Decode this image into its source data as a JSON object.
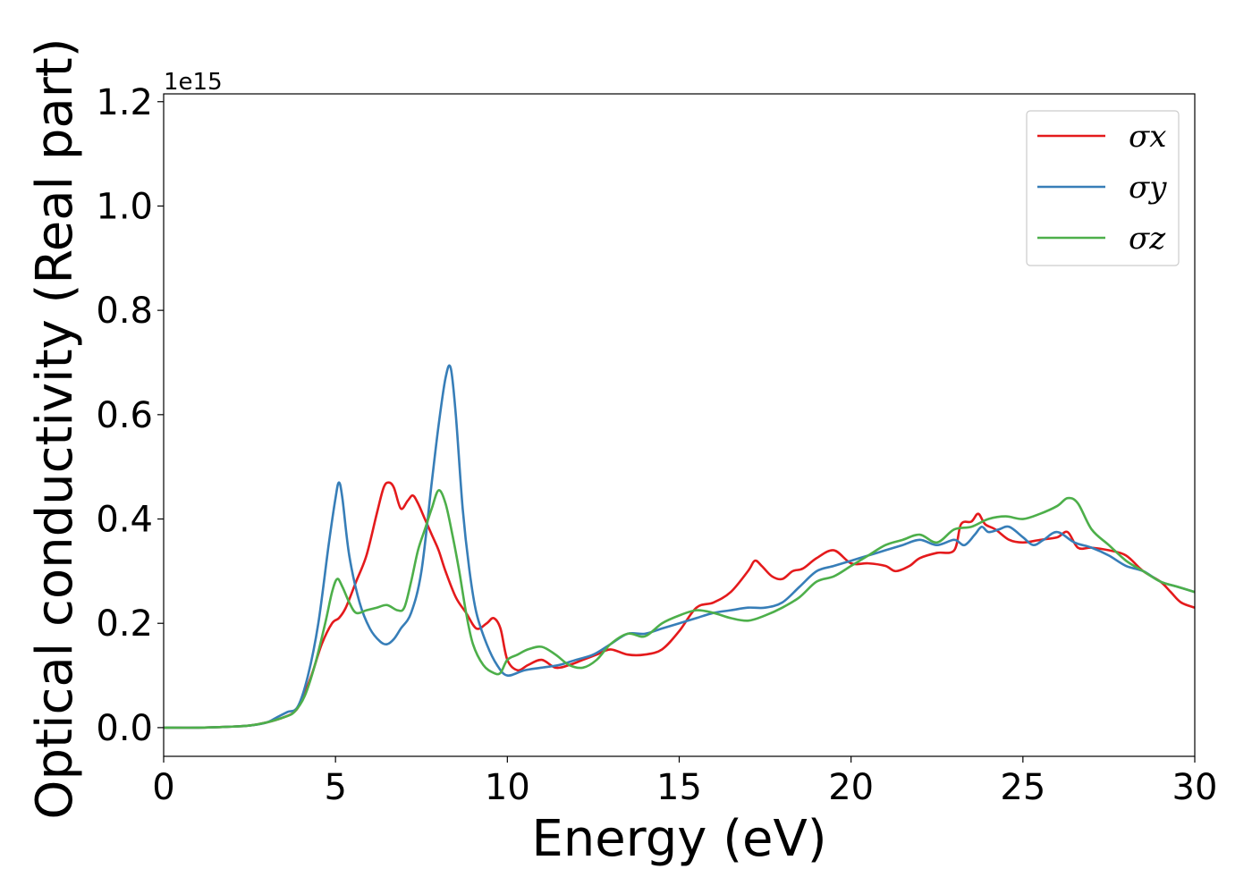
{
  "chart_data": {
    "type": "line",
    "xlabel": "Energy (eV)",
    "ylabel": "Optical conductivity (Real part)",
    "offset_text": "1e15",
    "xlim": [
      0,
      30
    ],
    "ylim": [
      -0.055,
      1.215
    ],
    "xticks": [
      0,
      5,
      10,
      15,
      20,
      25,
      30
    ],
    "xtick_labels": [
      "0",
      "5",
      "10",
      "15",
      "20",
      "25",
      "30"
    ],
    "yticks": [
      0.0,
      0.2,
      0.4,
      0.6,
      0.8,
      1.0,
      1.2
    ],
    "ytick_labels": [
      "0.0",
      "0.2",
      "0.4",
      "0.6",
      "0.8",
      "1.0",
      "1.2"
    ],
    "grid": false,
    "legend_position": "top-right",
    "series": [
      {
        "name": "σx",
        "color": "#e41a1c",
        "x": [
          0,
          1,
          2,
          2.5,
          3,
          3.5,
          3.8,
          4.0,
          4.3,
          4.6,
          4.9,
          5.1,
          5.3,
          5.6,
          5.9,
          6.2,
          6.4,
          6.55,
          6.7,
          6.9,
          7.1,
          7.25,
          7.4,
          7.6,
          7.8,
          8.0,
          8.2,
          8.5,
          8.8,
          9.1,
          9.4,
          9.6,
          9.8,
          10.0,
          10.3,
          10.6,
          11.0,
          11.4,
          11.8,
          12.2,
          12.6,
          13.0,
          13.5,
          14.0,
          14.5,
          15.0,
          15.5,
          16.0,
          16.5,
          17.0,
          17.2,
          17.4,
          17.7,
          18.0,
          18.3,
          18.6,
          19.0,
          19.5,
          20.0,
          20.5,
          21.0,
          21.3,
          21.7,
          22.0,
          22.5,
          23.0,
          23.2,
          23.5,
          23.7,
          23.9,
          24.2,
          24.6,
          25.0,
          25.5,
          26.0,
          26.3,
          26.6,
          27.0,
          27.5,
          28.0,
          28.5,
          29.0,
          29.3,
          29.6,
          30.0
        ],
        "y": [
          0.0,
          0.0,
          0.002,
          0.004,
          0.01,
          0.02,
          0.03,
          0.05,
          0.1,
          0.16,
          0.2,
          0.21,
          0.23,
          0.28,
          0.33,
          0.41,
          0.46,
          0.47,
          0.46,
          0.42,
          0.435,
          0.445,
          0.43,
          0.4,
          0.37,
          0.34,
          0.3,
          0.25,
          0.22,
          0.19,
          0.2,
          0.21,
          0.19,
          0.13,
          0.11,
          0.12,
          0.13,
          0.115,
          0.12,
          0.13,
          0.14,
          0.15,
          0.14,
          0.14,
          0.15,
          0.185,
          0.23,
          0.24,
          0.26,
          0.3,
          0.32,
          0.31,
          0.29,
          0.285,
          0.3,
          0.305,
          0.325,
          0.34,
          0.315,
          0.315,
          0.31,
          0.3,
          0.31,
          0.325,
          0.335,
          0.34,
          0.39,
          0.395,
          0.41,
          0.39,
          0.38,
          0.36,
          0.355,
          0.36,
          0.365,
          0.375,
          0.345,
          0.345,
          0.34,
          0.33,
          0.3,
          0.28,
          0.26,
          0.24,
          0.23
        ]
      },
      {
        "name": "σy",
        "color": "#377eb8",
        "x": [
          0,
          1,
          2,
          2.5,
          3,
          3.3,
          3.6,
          3.9,
          4.2,
          4.5,
          4.8,
          5.0,
          5.1,
          5.2,
          5.4,
          5.7,
          6.0,
          6.3,
          6.5,
          6.7,
          6.9,
          7.2,
          7.5,
          7.8,
          8.0,
          8.2,
          8.35,
          8.5,
          8.7,
          8.9,
          9.1,
          9.4,
          9.7,
          10.0,
          10.5,
          11.0,
          11.5,
          12.0,
          12.5,
          13.0,
          13.5,
          14.0,
          14.5,
          15.0,
          15.5,
          16.0,
          16.5,
          17.0,
          17.5,
          18.0,
          18.5,
          19.0,
          19.5,
          20.0,
          20.5,
          21.0,
          21.5,
          22.0,
          22.5,
          23.0,
          23.3,
          23.6,
          23.8,
          24.0,
          24.3,
          24.6,
          25.0,
          25.3,
          25.6,
          26.0,
          26.5,
          27.0,
          27.5,
          28.0,
          28.5,
          29.0,
          29.5,
          30.0
        ],
        "y": [
          0.0,
          0.0,
          0.002,
          0.004,
          0.01,
          0.02,
          0.03,
          0.04,
          0.1,
          0.2,
          0.35,
          0.44,
          0.47,
          0.44,
          0.33,
          0.24,
          0.19,
          0.165,
          0.16,
          0.17,
          0.19,
          0.22,
          0.3,
          0.47,
          0.58,
          0.67,
          0.69,
          0.6,
          0.42,
          0.3,
          0.22,
          0.16,
          0.12,
          0.1,
          0.11,
          0.115,
          0.12,
          0.13,
          0.14,
          0.16,
          0.18,
          0.18,
          0.19,
          0.2,
          0.21,
          0.22,
          0.225,
          0.23,
          0.23,
          0.24,
          0.27,
          0.3,
          0.31,
          0.32,
          0.33,
          0.34,
          0.35,
          0.36,
          0.35,
          0.36,
          0.35,
          0.37,
          0.385,
          0.375,
          0.38,
          0.385,
          0.365,
          0.35,
          0.36,
          0.375,
          0.355,
          0.345,
          0.33,
          0.31,
          0.3,
          0.28,
          0.27,
          0.26
        ]
      },
      {
        "name": "σz",
        "color": "#4daf4a",
        "x": [
          0,
          1,
          2,
          2.5,
          3,
          3.5,
          3.8,
          4.1,
          4.4,
          4.7,
          4.9,
          5.05,
          5.2,
          5.4,
          5.6,
          5.9,
          6.2,
          6.5,
          6.8,
          7.0,
          7.2,
          7.4,
          7.6,
          7.8,
          8.0,
          8.2,
          8.4,
          8.6,
          8.8,
          9.0,
          9.3,
          9.6,
          9.8,
          10.0,
          10.3,
          10.6,
          11.0,
          11.4,
          11.8,
          12.2,
          12.6,
          13.0,
          13.5,
          14.0,
          14.5,
          15.0,
          15.5,
          16.0,
          16.5,
          17.0,
          17.5,
          18.0,
          18.5,
          19.0,
          19.5,
          20.0,
          20.5,
          21.0,
          21.5,
          22.0,
          22.5,
          23.0,
          23.5,
          24.0,
          24.5,
          25.0,
          25.5,
          26.0,
          26.3,
          26.6,
          27.0,
          27.5,
          28.0,
          28.5,
          29.0,
          29.5,
          30.0
        ],
        "y": [
          0.0,
          0.0,
          0.002,
          0.004,
          0.01,
          0.02,
          0.03,
          0.06,
          0.12,
          0.2,
          0.26,
          0.285,
          0.27,
          0.24,
          0.22,
          0.225,
          0.23,
          0.235,
          0.225,
          0.23,
          0.28,
          0.34,
          0.38,
          0.42,
          0.455,
          0.43,
          0.37,
          0.3,
          0.22,
          0.16,
          0.12,
          0.105,
          0.105,
          0.13,
          0.14,
          0.15,
          0.155,
          0.14,
          0.12,
          0.115,
          0.13,
          0.16,
          0.18,
          0.175,
          0.2,
          0.215,
          0.225,
          0.22,
          0.21,
          0.205,
          0.215,
          0.23,
          0.25,
          0.28,
          0.29,
          0.31,
          0.33,
          0.35,
          0.36,
          0.37,
          0.355,
          0.38,
          0.385,
          0.4,
          0.405,
          0.4,
          0.41,
          0.425,
          0.44,
          0.43,
          0.38,
          0.35,
          0.32,
          0.3,
          0.28,
          0.27,
          0.26
        ]
      }
    ]
  }
}
